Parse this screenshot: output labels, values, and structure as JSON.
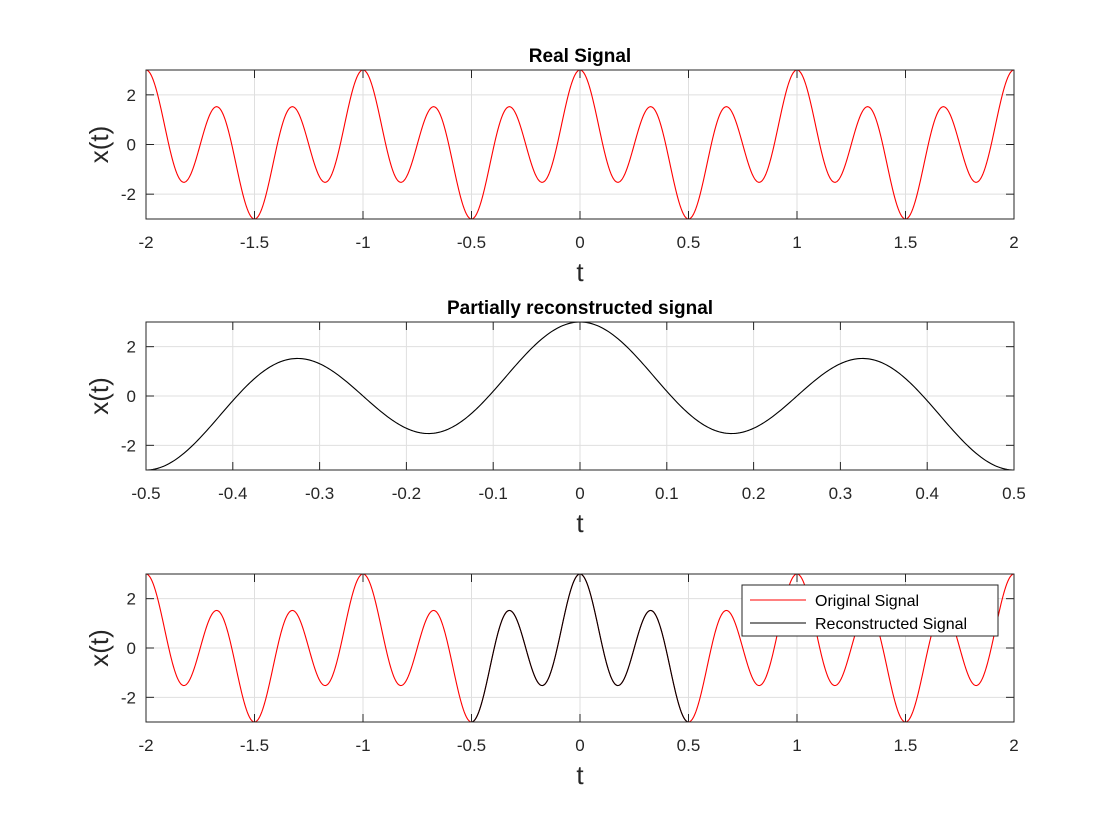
{
  "chart_data": [
    {
      "type": "line",
      "title": "Real Signal",
      "xlabel": "t",
      "ylabel": "x(t)",
      "xlim": [
        -2,
        2
      ],
      "ylim": [
        -3,
        3
      ],
      "xticks": [
        "-2",
        "-1.5",
        "-1",
        "-0.5",
        "0",
        "0.5",
        "1",
        "1.5",
        "2"
      ],
      "yticks": [
        "-2",
        "0",
        "2"
      ],
      "grid": true,
      "signal": "x(t) = cos(2πt) + 2·cos(6πt), period 1",
      "series": [
        {
          "color": "#ff0000",
          "t_start": -2,
          "t_end": 2
        }
      ]
    },
    {
      "type": "line",
      "title": "Partially reconstructed signal",
      "xlabel": "t",
      "ylabel": "x(t)",
      "xlim": [
        -0.5,
        0.5
      ],
      "ylim": [
        -3,
        3
      ],
      "xticks": [
        "-0.5",
        "-0.4",
        "-0.3",
        "-0.2",
        "-0.1",
        "0",
        "0.1",
        "0.2",
        "0.3",
        "0.4",
        "0.5"
      ],
      "yticks": [
        "-2",
        "0",
        "2"
      ],
      "grid": true,
      "series": [
        {
          "color": "#000000",
          "t_start": -0.5,
          "t_end": 0.5
        }
      ]
    },
    {
      "type": "line",
      "title": "",
      "xlabel": "t",
      "ylabel": "x(t)",
      "xlim": [
        -2,
        2
      ],
      "ylim": [
        -3,
        3
      ],
      "xticks": [
        "-2",
        "-1.5",
        "-1",
        "-0.5",
        "0",
        "0.5",
        "1",
        "1.5",
        "2"
      ],
      "yticks": [
        "-2",
        "0",
        "2"
      ],
      "grid": true,
      "legend_position": "top-right",
      "series": [
        {
          "name": "Original Signal",
          "color": "#ff0000",
          "t_start": -2,
          "t_end": 2
        },
        {
          "name": "Reconstructed Signal",
          "color": "#000000",
          "t_start": -0.5,
          "t_end": 0.5
        }
      ]
    }
  ]
}
